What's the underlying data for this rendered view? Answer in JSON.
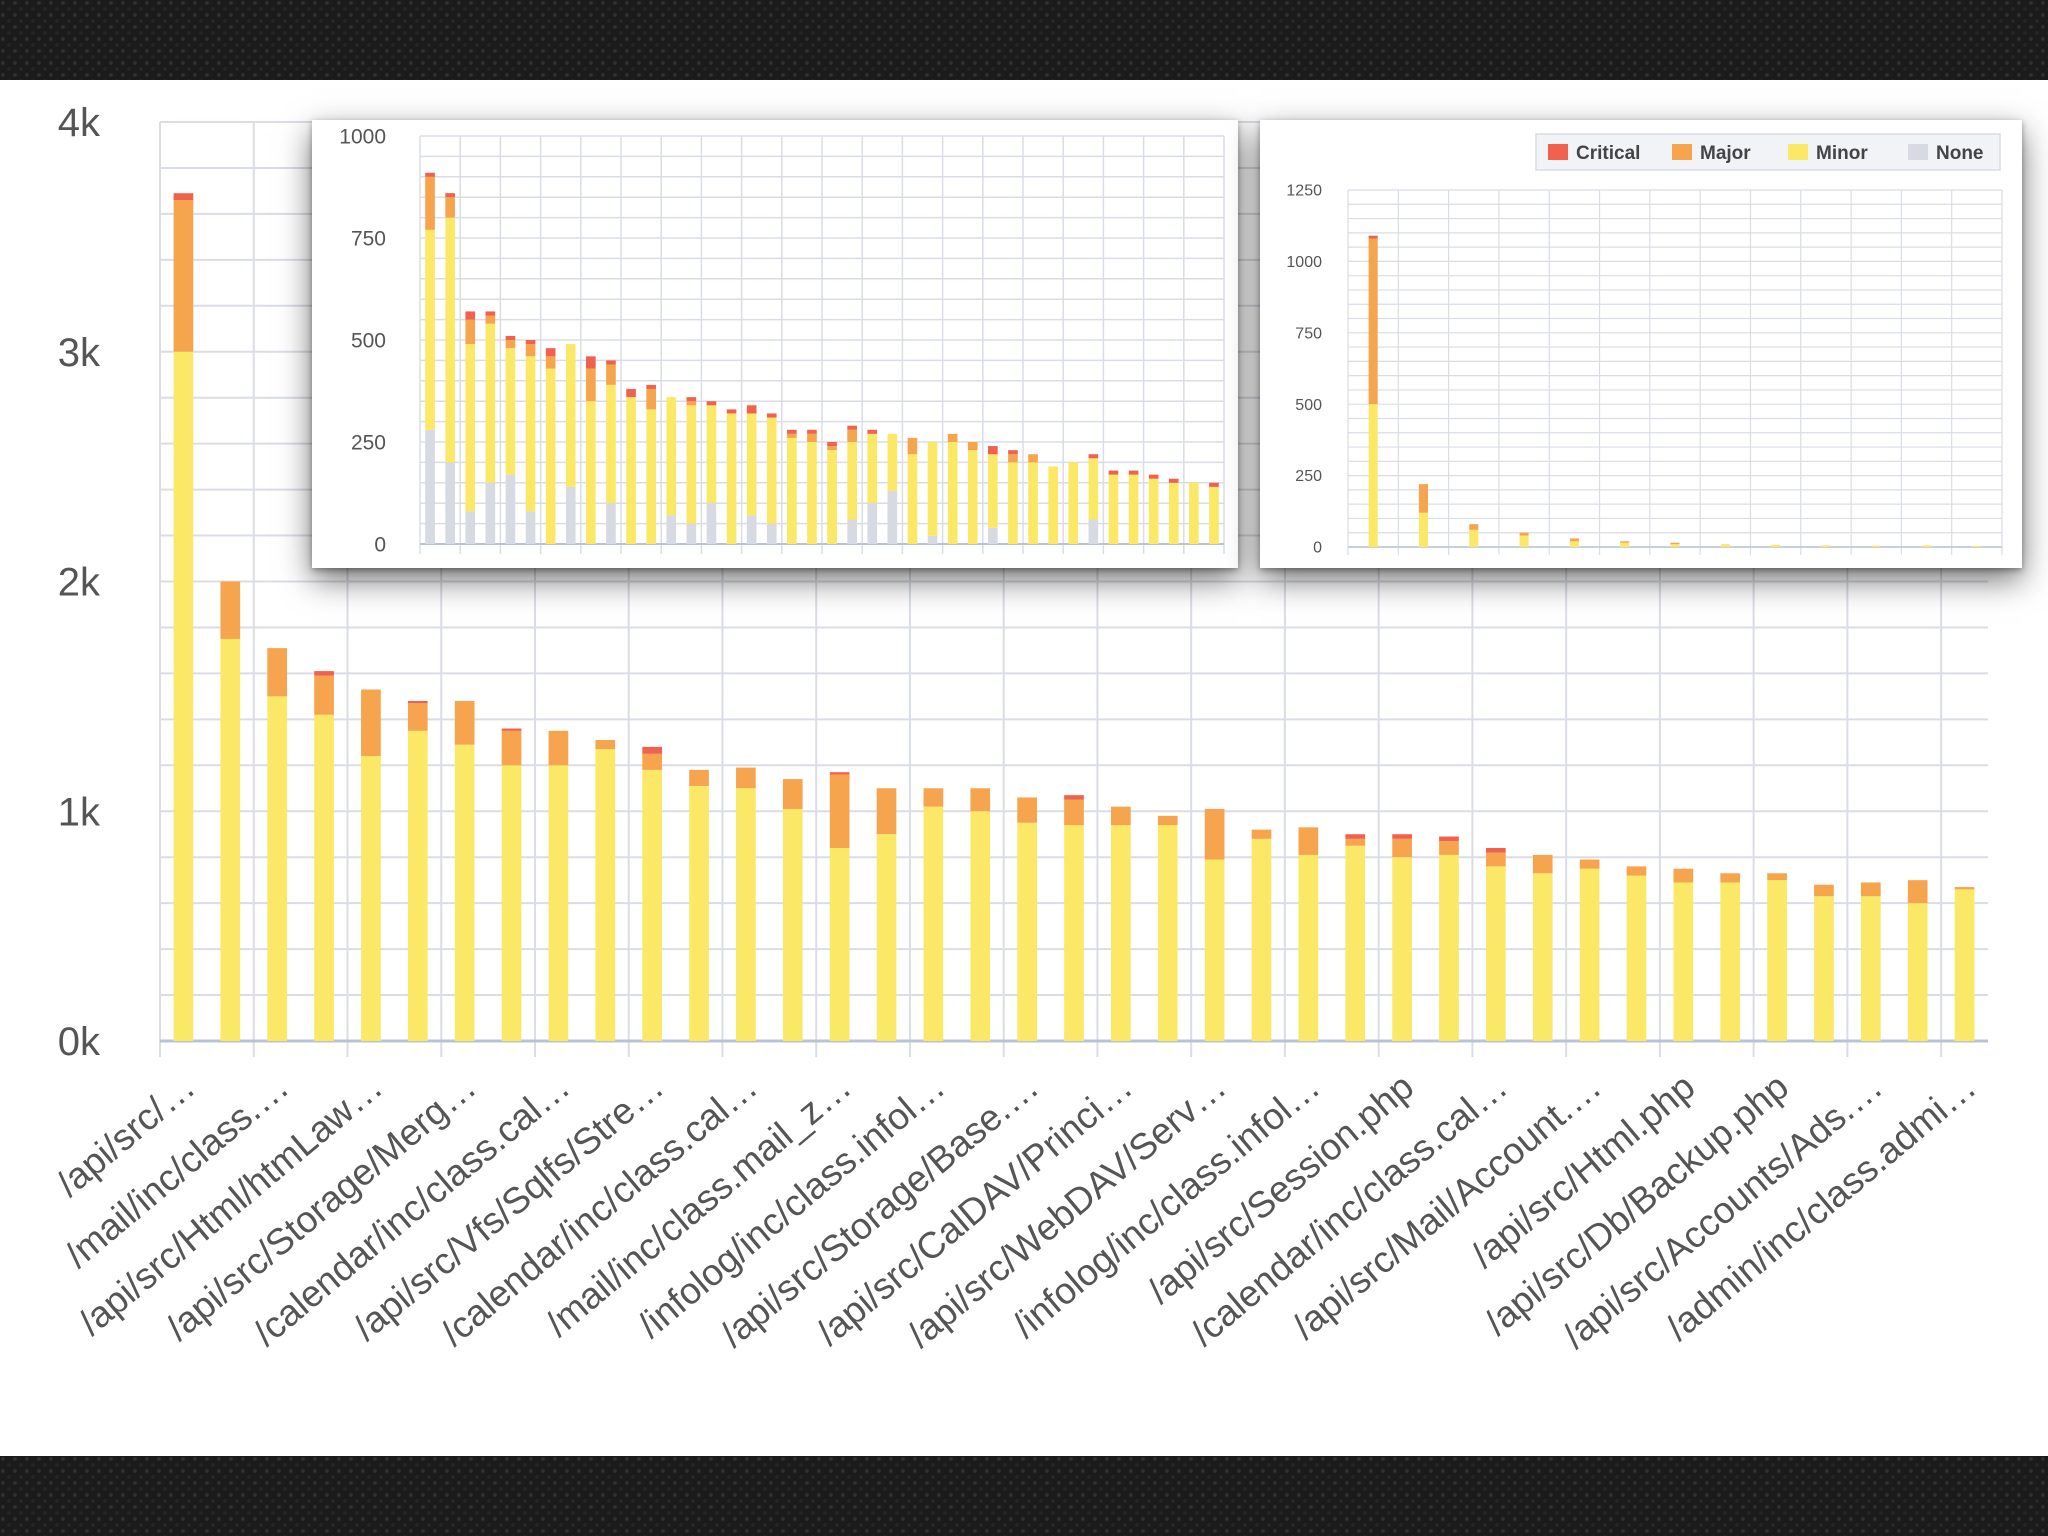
{
  "colors": {
    "critical": "#f0614e",
    "major": "#f6a44d",
    "minor": "#fbe866",
    "none": "#d7dae3",
    "grid": "#dadde6",
    "axis": "#b8c4d6",
    "text": "#555555"
  },
  "chart_data": [
    {
      "id": "main",
      "type": "bar",
      "stacked": true,
      "ylim": [
        0,
        4000
      ],
      "y_ticks": [
        0,
        1000,
        2000,
        3000,
        4000
      ],
      "y_tick_labels": [
        "0k",
        "1k",
        "2k",
        "3k",
        "4k"
      ],
      "grid": true,
      "x_tick_labels": [
        "/api/src/…",
        "/mail/inc/class.…",
        "/api/src/Html/htmLaw…",
        "/api/src/Storage/Merg…",
        "/calendar/inc/class.cal…",
        "/api/src/Vfs/Sqlfs/Stre…",
        "/calendar/inc/class.cal…",
        "/mail/inc/class.mail_z…",
        "/infolog/inc/class.infol…",
        "/api/src/Storage/Base.…",
        "/api/src/CalDAV/Princi…",
        "/api/src/WebDAV/Serv…",
        "/infolog/inc/class.infol…",
        "/api/src/Session.php",
        "/calendar/inc/class.cal…",
        "/api/src/Mail/Account.…",
        "/api/src/Html.php",
        "/api/src/Db/Backup.php",
        "/api/src/Accounts/Ads.…",
        "/admin/inc/class.admi…"
      ],
      "series": [
        {
          "name": "Minor",
          "values": [
            3000,
            1750,
            1500,
            1420,
            1240,
            1350,
            1290,
            1200,
            1200,
            1270,
            1180,
            1110,
            1100,
            1010,
            840,
            900,
            1020,
            1000,
            950,
            940,
            940,
            940,
            790,
            880,
            810,
            850,
            800,
            810,
            760,
            730,
            750,
            720,
            690,
            690,
            700,
            630,
            630,
            600,
            660
          ]
        },
        {
          "name": "Major",
          "values": [
            660,
            250,
            210,
            170,
            290,
            120,
            190,
            150,
            150,
            40,
            70,
            70,
            90,
            130,
            320,
            200,
            80,
            100,
            110,
            110,
            80,
            40,
            220,
            40,
            120,
            30,
            80,
            60,
            60,
            80,
            40,
            40,
            60,
            40,
            30,
            50,
            60,
            100,
            10
          ]
        },
        {
          "name": "Critical",
          "values": [
            30,
            0,
            0,
            20,
            0,
            10,
            0,
            10,
            0,
            0,
            30,
            0,
            0,
            0,
            10,
            0,
            0,
            0,
            0,
            20,
            0,
            0,
            0,
            0,
            0,
            20,
            20,
            20,
            20,
            0,
            0,
            0,
            0,
            0,
            0,
            0,
            0,
            0,
            0
          ]
        }
      ]
    },
    {
      "id": "inset-left",
      "type": "bar",
      "stacked": true,
      "ylim": [
        0,
        1000
      ],
      "y_ticks": [
        0,
        250,
        500,
        750,
        1000
      ],
      "grid": true,
      "series": [
        {
          "name": "None",
          "values": [
            280,
            200,
            80,
            150,
            170,
            80,
            0,
            140,
            0,
            100,
            0,
            0,
            70,
            50,
            100,
            0,
            70,
            50,
            0,
            0,
            0,
            60,
            100,
            130,
            0,
            20,
            0,
            0,
            40,
            0,
            0,
            0,
            0,
            60,
            0,
            0,
            0,
            0,
            0,
            0
          ]
        },
        {
          "name": "Minor",
          "values": [
            490,
            600,
            410,
            390,
            310,
            380,
            430,
            350,
            350,
            290,
            360,
            330,
            290,
            290,
            240,
            320,
            250,
            260,
            260,
            250,
            230,
            190,
            170,
            140,
            220,
            230,
            250,
            230,
            180,
            200,
            200,
            190,
            200,
            150,
            170,
            170,
            160,
            150,
            150,
            140
          ]
        },
        {
          "name": "Major",
          "values": [
            130,
            50,
            60,
            20,
            20,
            30,
            30,
            0,
            80,
            50,
            0,
            50,
            0,
            10,
            0,
            0,
            0,
            0,
            10,
            20,
            10,
            30,
            0,
            0,
            40,
            0,
            20,
            20,
            0,
            20,
            20,
            0,
            0,
            0,
            0,
            0,
            0,
            0,
            0,
            0
          ]
        },
        {
          "name": "Critical",
          "values": [
            10,
            10,
            20,
            10,
            10,
            10,
            20,
            0,
            30,
            10,
            20,
            10,
            0,
            10,
            10,
            10,
            20,
            10,
            10,
            10,
            10,
            10,
            10,
            0,
            0,
            0,
            0,
            0,
            20,
            10,
            0,
            0,
            0,
            10,
            10,
            10,
            10,
            10,
            0,
            10
          ]
        }
      ]
    },
    {
      "id": "inset-right",
      "type": "bar",
      "stacked": true,
      "ylim": [
        0,
        1250
      ],
      "y_ticks": [
        0,
        250,
        500,
        750,
        1000,
        1250
      ],
      "grid": true,
      "legend_position": "top-right",
      "legend": [
        "Critical",
        "Major",
        "Minor",
        "None"
      ],
      "series": [
        {
          "name": "None",
          "values": [
            0,
            0,
            0,
            0,
            0,
            0,
            0,
            0,
            0,
            0,
            0,
            0,
            0
          ]
        },
        {
          "name": "Minor",
          "values": [
            500,
            120,
            60,
            40,
            20,
            15,
            10,
            10,
            8,
            6,
            5,
            6,
            4
          ]
        },
        {
          "name": "Major",
          "values": [
            580,
            100,
            20,
            10,
            10,
            5,
            5,
            0,
            0,
            0,
            0,
            0,
            0
          ]
        },
        {
          "name": "Critical",
          "values": [
            10,
            0,
            0,
            0,
            0,
            0,
            0,
            0,
            0,
            0,
            0,
            0,
            0
          ]
        }
      ]
    }
  ]
}
